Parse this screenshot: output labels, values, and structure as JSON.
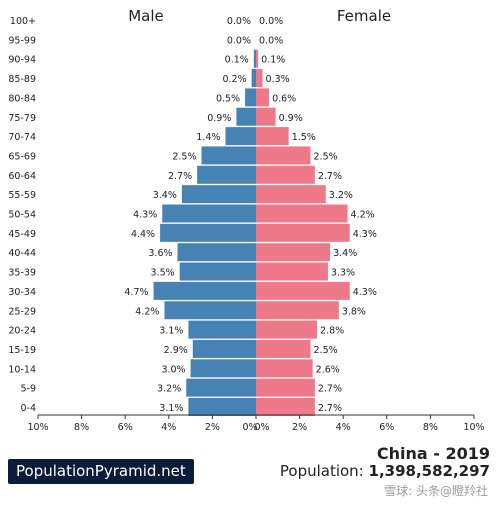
{
  "chart_data": {
    "type": "bar",
    "title_left": "Male",
    "title_right": "Female",
    "categories": [
      "100+",
      "95-99",
      "90-94",
      "85-89",
      "80-84",
      "75-79",
      "70-74",
      "65-69",
      "60-64",
      "55-59",
      "50-54",
      "45-49",
      "40-44",
      "35-39",
      "30-34",
      "25-29",
      "20-24",
      "15-19",
      "10-14",
      "5-9",
      "0-4"
    ],
    "series": [
      {
        "name": "Male",
        "color": "#4682b4",
        "values": [
          0.0,
          0.0,
          0.1,
          0.2,
          0.5,
          0.9,
          1.4,
          2.5,
          2.7,
          3.4,
          4.3,
          4.4,
          3.6,
          3.5,
          4.7,
          4.2,
          3.1,
          2.9,
          3.0,
          3.2,
          3.1
        ],
        "labels": [
          "0.0%",
          "0.0%",
          "0.1%",
          "0.2%",
          "0.5%",
          "0.9%",
          "1.4%",
          "2.5%",
          "2.7%",
          "3.4%",
          "4.3%",
          "4.4%",
          "3.6%",
          "3.5%",
          "4.7%",
          "4.2%",
          "3.1%",
          "2.9%",
          "3.0%",
          "3.2%",
          "3.1%"
        ]
      },
      {
        "name": "Female",
        "color": "#ee7989",
        "values": [
          0.0,
          0.0,
          0.1,
          0.3,
          0.6,
          0.9,
          1.5,
          2.5,
          2.7,
          3.2,
          4.2,
          4.3,
          3.4,
          3.3,
          4.3,
          3.8,
          2.8,
          2.5,
          2.6,
          2.7,
          2.7
        ],
        "labels": [
          "0.0%",
          "0.0%",
          "0.1%",
          "0.3%",
          "0.6%",
          "0.9%",
          "1.5%",
          "2.5%",
          "2.7%",
          "3.2%",
          "4.2%",
          "4.3%",
          "3.4%",
          "3.3%",
          "4.3%",
          "3.8%",
          "2.8%",
          "2.5%",
          "2.6%",
          "2.7%",
          "2.7%"
        ]
      }
    ],
    "x_ticks": [
      "10%",
      "8%",
      "6%",
      "4%",
      "2%",
      "0%",
      "0%",
      "2%",
      "4%",
      "6%",
      "8%",
      "10%"
    ],
    "xlim": [
      -10,
      10
    ],
    "grid": false,
    "legend": "none"
  },
  "footer": {
    "brand": "PopulationPyramid.net",
    "title": "China - 2019",
    "population_label": "Population:",
    "population_value": "1,398,582,297",
    "watermark": "雪球: 头条@瞪羚社"
  }
}
